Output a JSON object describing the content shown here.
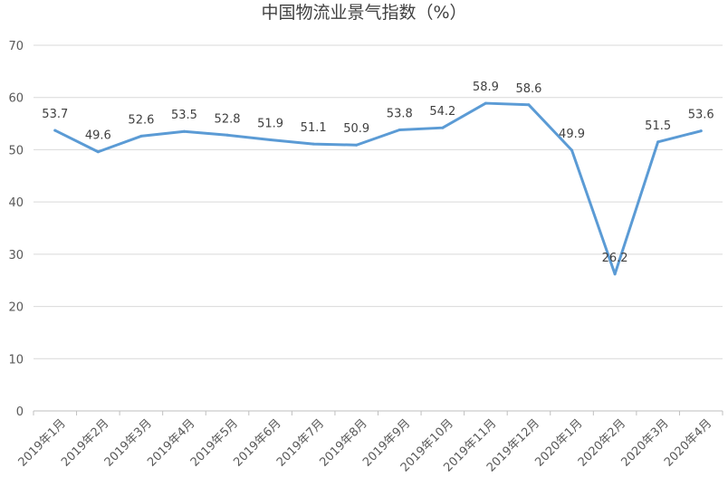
{
  "chart_data": {
    "type": "line",
    "title": "中国物流业景气指数（%）",
    "xlabel": "",
    "ylabel": "",
    "categories": [
      "2019年1月",
      "2019年2月",
      "2019年3月",
      "2019年4月",
      "2019年5月",
      "2019年6月",
      "2019年7月",
      "2019年8月",
      "2019年9月",
      "2019年10月",
      "2019年11月",
      "2019年12月",
      "2020年1月",
      "2020年2月",
      "2020年3月",
      "2020年4月"
    ],
    "series": [
      {
        "name": "",
        "color": "#5b9bd5",
        "values": [
          53.7,
          49.6,
          52.6,
          53.5,
          52.8,
          51.9,
          51.1,
          50.9,
          53.8,
          54.2,
          58.9,
          58.6,
          49.9,
          26.2,
          51.5,
          53.6
        ],
        "labels": [
          "53.7",
          "49.6",
          "52.6",
          "53.5",
          "52.8",
          "51.9",
          "51.1",
          "50.9",
          "53.8",
          "54.2",
          "58.9",
          "58.6",
          "49.9",
          "26.2",
          "51.5",
          "53.6"
        ]
      }
    ],
    "ylim": [
      0,
      70
    ],
    "yticks": [
      "0",
      "10",
      "20",
      "30",
      "40",
      "50",
      "60",
      "70"
    ],
    "grid": true,
    "legend": "none"
  }
}
